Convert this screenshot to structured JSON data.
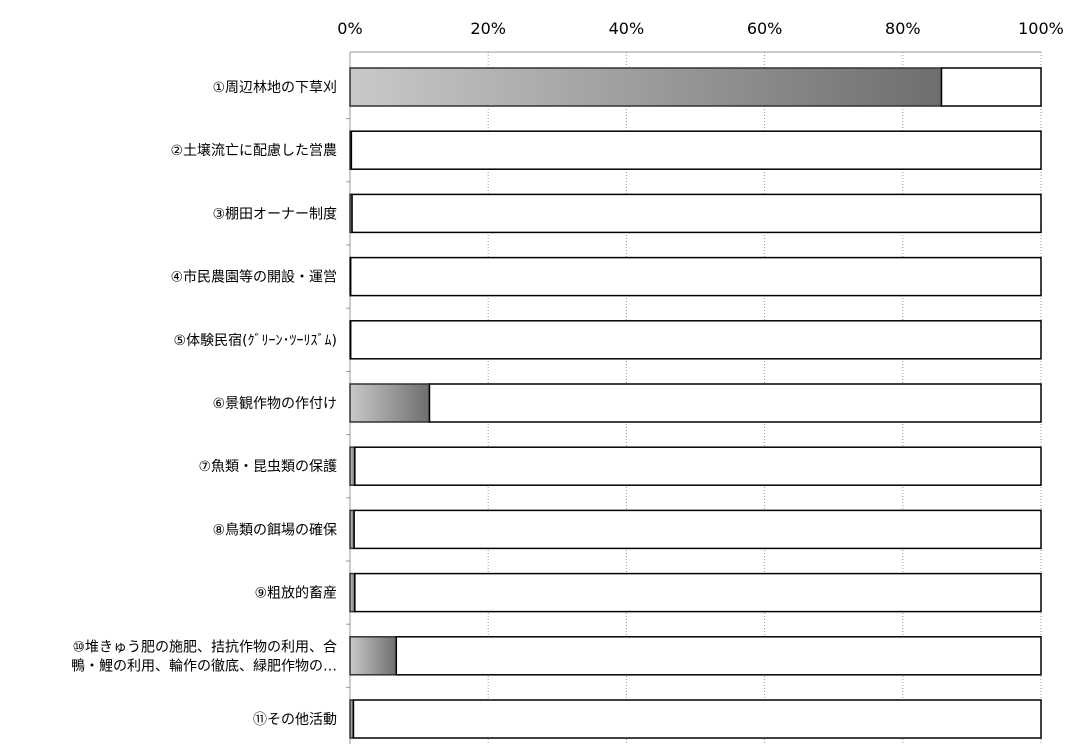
{
  "chart_data": {
    "type": "bar",
    "orientation": "horizontal",
    "stacked": true,
    "categories": [
      [
        "①周辺林地の下草刈"
      ],
      [
        "②土壌流亡に配慮した営農"
      ],
      [
        "③棚田オーナー制度"
      ],
      [
        "④市民農園等の開設・運営"
      ],
      [
        "⑤体験民宿(ｸﾞﾘｰﾝ･ﾂｰﾘｽﾞﾑ)"
      ],
      [
        "⑥景観作物の作付け"
      ],
      [
        "⑦魚類・昆虫類の保護"
      ],
      [
        "⑧鳥類の餌場の確保"
      ],
      [
        "⑨粗放的畜産"
      ],
      [
        "⑩堆きゅう肥の施肥、拮抗作物の利用、合",
        "鴨・鯉の利用、輪作の徹底、緑肥作物の…"
      ],
      [
        "⑪その他活動"
      ]
    ],
    "series": [
      {
        "values": [
          85.6,
          0.2,
          0.3,
          0.1,
          0.1,
          11.5,
          0.7,
          0.6,
          0.7,
          6.7,
          0.5
        ]
      },
      {
        "values": [
          14.4,
          99.8,
          99.7,
          99.9,
          99.9,
          88.5,
          99.3,
          99.4,
          99.3,
          93.3,
          99.5
        ]
      }
    ],
    "x_ticks": [
      "0%",
      "20%",
      "40%",
      "60%",
      "80%",
      "100%"
    ],
    "xlim": [
      0,
      100
    ],
    "axis_position": "top",
    "grid": true,
    "legend": "none",
    "colors": {
      "filled_start": "#c9c9c9",
      "filled_end": "#6e6e6e",
      "remainder": "#ffffff",
      "outline": "#000000",
      "grid": "#999999"
    }
  }
}
